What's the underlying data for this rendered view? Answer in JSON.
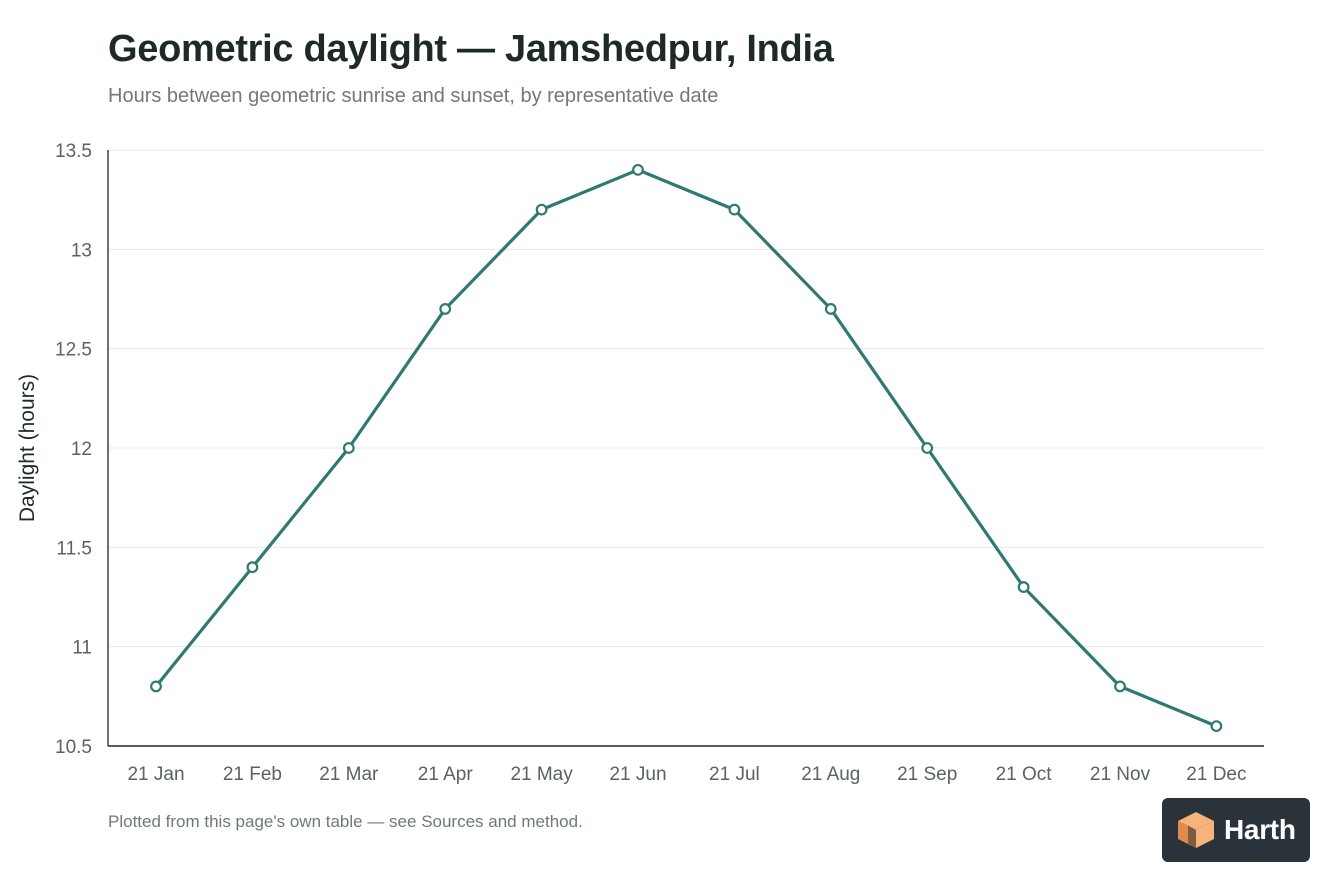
{
  "page": {
    "title": "Geometric daylight — Jamshedpur, India",
    "subtitle": "Hours between geometric sunrise and sunset, by representative date",
    "footnote": "Plotted from this page's own table — see Sources and method."
  },
  "brand": {
    "name": "Harth",
    "icon": "cube-logo-icon",
    "colors": {
      "background": "#2b333a",
      "logo_light": "#f6b47c",
      "logo_dark": "#e08a4c"
    }
  },
  "chart_data": {
    "type": "line",
    "categories": [
      "21 Jan",
      "21 Feb",
      "21 Mar",
      "21 Apr",
      "21 May",
      "21 Jun",
      "21 Jul",
      "21 Aug",
      "21 Sep",
      "21 Oct",
      "21 Nov",
      "21 Dec"
    ],
    "series": [
      {
        "values": [
          10.8,
          11.4,
          12.0,
          12.7,
          13.2,
          13.4,
          13.2,
          12.7,
          12.0,
          11.3,
          10.8,
          10.6
        ],
        "color": "#2f7a70"
      }
    ],
    "xlabel": "",
    "ylabel": "Daylight (hours)",
    "ylim": [
      10.5,
      13.5
    ],
    "yticks": [
      10.5,
      11,
      11.5,
      12,
      12.5,
      13,
      13.5
    ],
    "ytick_labels": [
      "10.5",
      "11",
      "11.5",
      "12",
      "12.5",
      "13",
      "13.5"
    ],
    "grid": "horizontal",
    "legend": "none",
    "markers": "hollow circles"
  }
}
